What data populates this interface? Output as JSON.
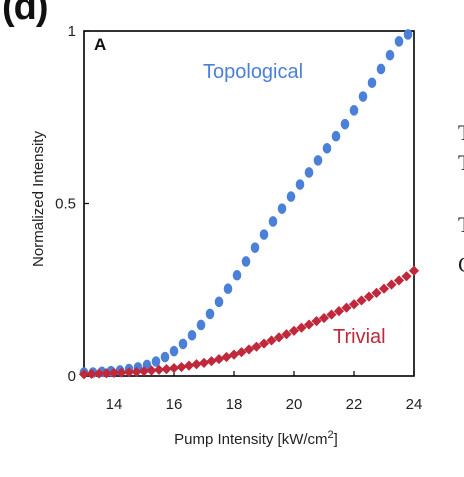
{
  "panel_tag": "(d)",
  "inset_letter": "A",
  "edge_fragments": [
    "T",
    "T",
    "T",
    "C"
  ],
  "colors": {
    "topological": "#4a80d8",
    "trivial": "#c0293b",
    "axis": "#000000"
  },
  "chart_data": {
    "type": "scatter",
    "xlabel": "Pump Intensity [kW/cm",
    "xlabel_sup": "2",
    "xlabel_close": "]",
    "ylabel": "Normalized Intensity",
    "xlim": [
      13,
      24
    ],
    "ylim": [
      0,
      1
    ],
    "xticks": [
      14,
      16,
      18,
      20,
      22,
      24
    ],
    "yticks": [
      {
        "value": 0,
        "label": "0"
      },
      {
        "value": 0.5,
        "label": "0.5"
      },
      {
        "value": 1,
        "label": "1"
      }
    ],
    "grid": false,
    "series": [
      {
        "name": "Topological",
        "color": "#4a80d8",
        "x": [
          13.0,
          13.3,
          13.6,
          13.9,
          14.2,
          14.5,
          14.8,
          15.1,
          15.4,
          15.7,
          16.0,
          16.3,
          16.6,
          16.9,
          17.2,
          17.5,
          17.8,
          18.1,
          18.4,
          18.7,
          19.0,
          19.3,
          19.6,
          19.9,
          20.2,
          20.5,
          20.8,
          21.1,
          21.4,
          21.7,
          22.0,
          22.3,
          22.6,
          22.9,
          23.2,
          23.5,
          23.8
        ],
        "y": [
          0.01,
          0.01,
          0.012,
          0.014,
          0.016,
          0.02,
          0.025,
          0.032,
          0.042,
          0.055,
          0.072,
          0.093,
          0.118,
          0.148,
          0.18,
          0.215,
          0.253,
          0.292,
          0.332,
          0.372,
          0.41,
          0.448,
          0.485,
          0.52,
          0.555,
          0.59,
          0.625,
          0.66,
          0.695,
          0.73,
          0.77,
          0.81,
          0.85,
          0.89,
          0.93,
          0.97,
          0.99
        ]
      },
      {
        "name": "Trivial",
        "color": "#c0293b",
        "x": [
          13.0,
          13.25,
          13.5,
          13.75,
          14.0,
          14.25,
          14.5,
          14.75,
          15.0,
          15.25,
          15.5,
          15.75,
          16.0,
          16.25,
          16.5,
          16.75,
          17.0,
          17.25,
          17.5,
          17.75,
          18.0,
          18.25,
          18.5,
          18.75,
          19.0,
          19.25,
          19.5,
          19.75,
          20.0,
          20.25,
          20.5,
          20.75,
          21.0,
          21.25,
          21.5,
          21.75,
          22.0,
          22.25,
          22.5,
          22.75,
          23.0,
          23.25,
          23.5,
          23.75,
          24.0
        ],
        "y": [
          0.005,
          0.006,
          0.007,
          0.008,
          0.009,
          0.01,
          0.011,
          0.012,
          0.014,
          0.016,
          0.018,
          0.02,
          0.023,
          0.026,
          0.03,
          0.034,
          0.038,
          0.043,
          0.049,
          0.055,
          0.062,
          0.069,
          0.077,
          0.085,
          0.094,
          0.103,
          0.112,
          0.121,
          0.131,
          0.14,
          0.149,
          0.159,
          0.168,
          0.178,
          0.188,
          0.198,
          0.208,
          0.219,
          0.23,
          0.241,
          0.253,
          0.265,
          0.277,
          0.289,
          0.305
        ]
      }
    ]
  }
}
